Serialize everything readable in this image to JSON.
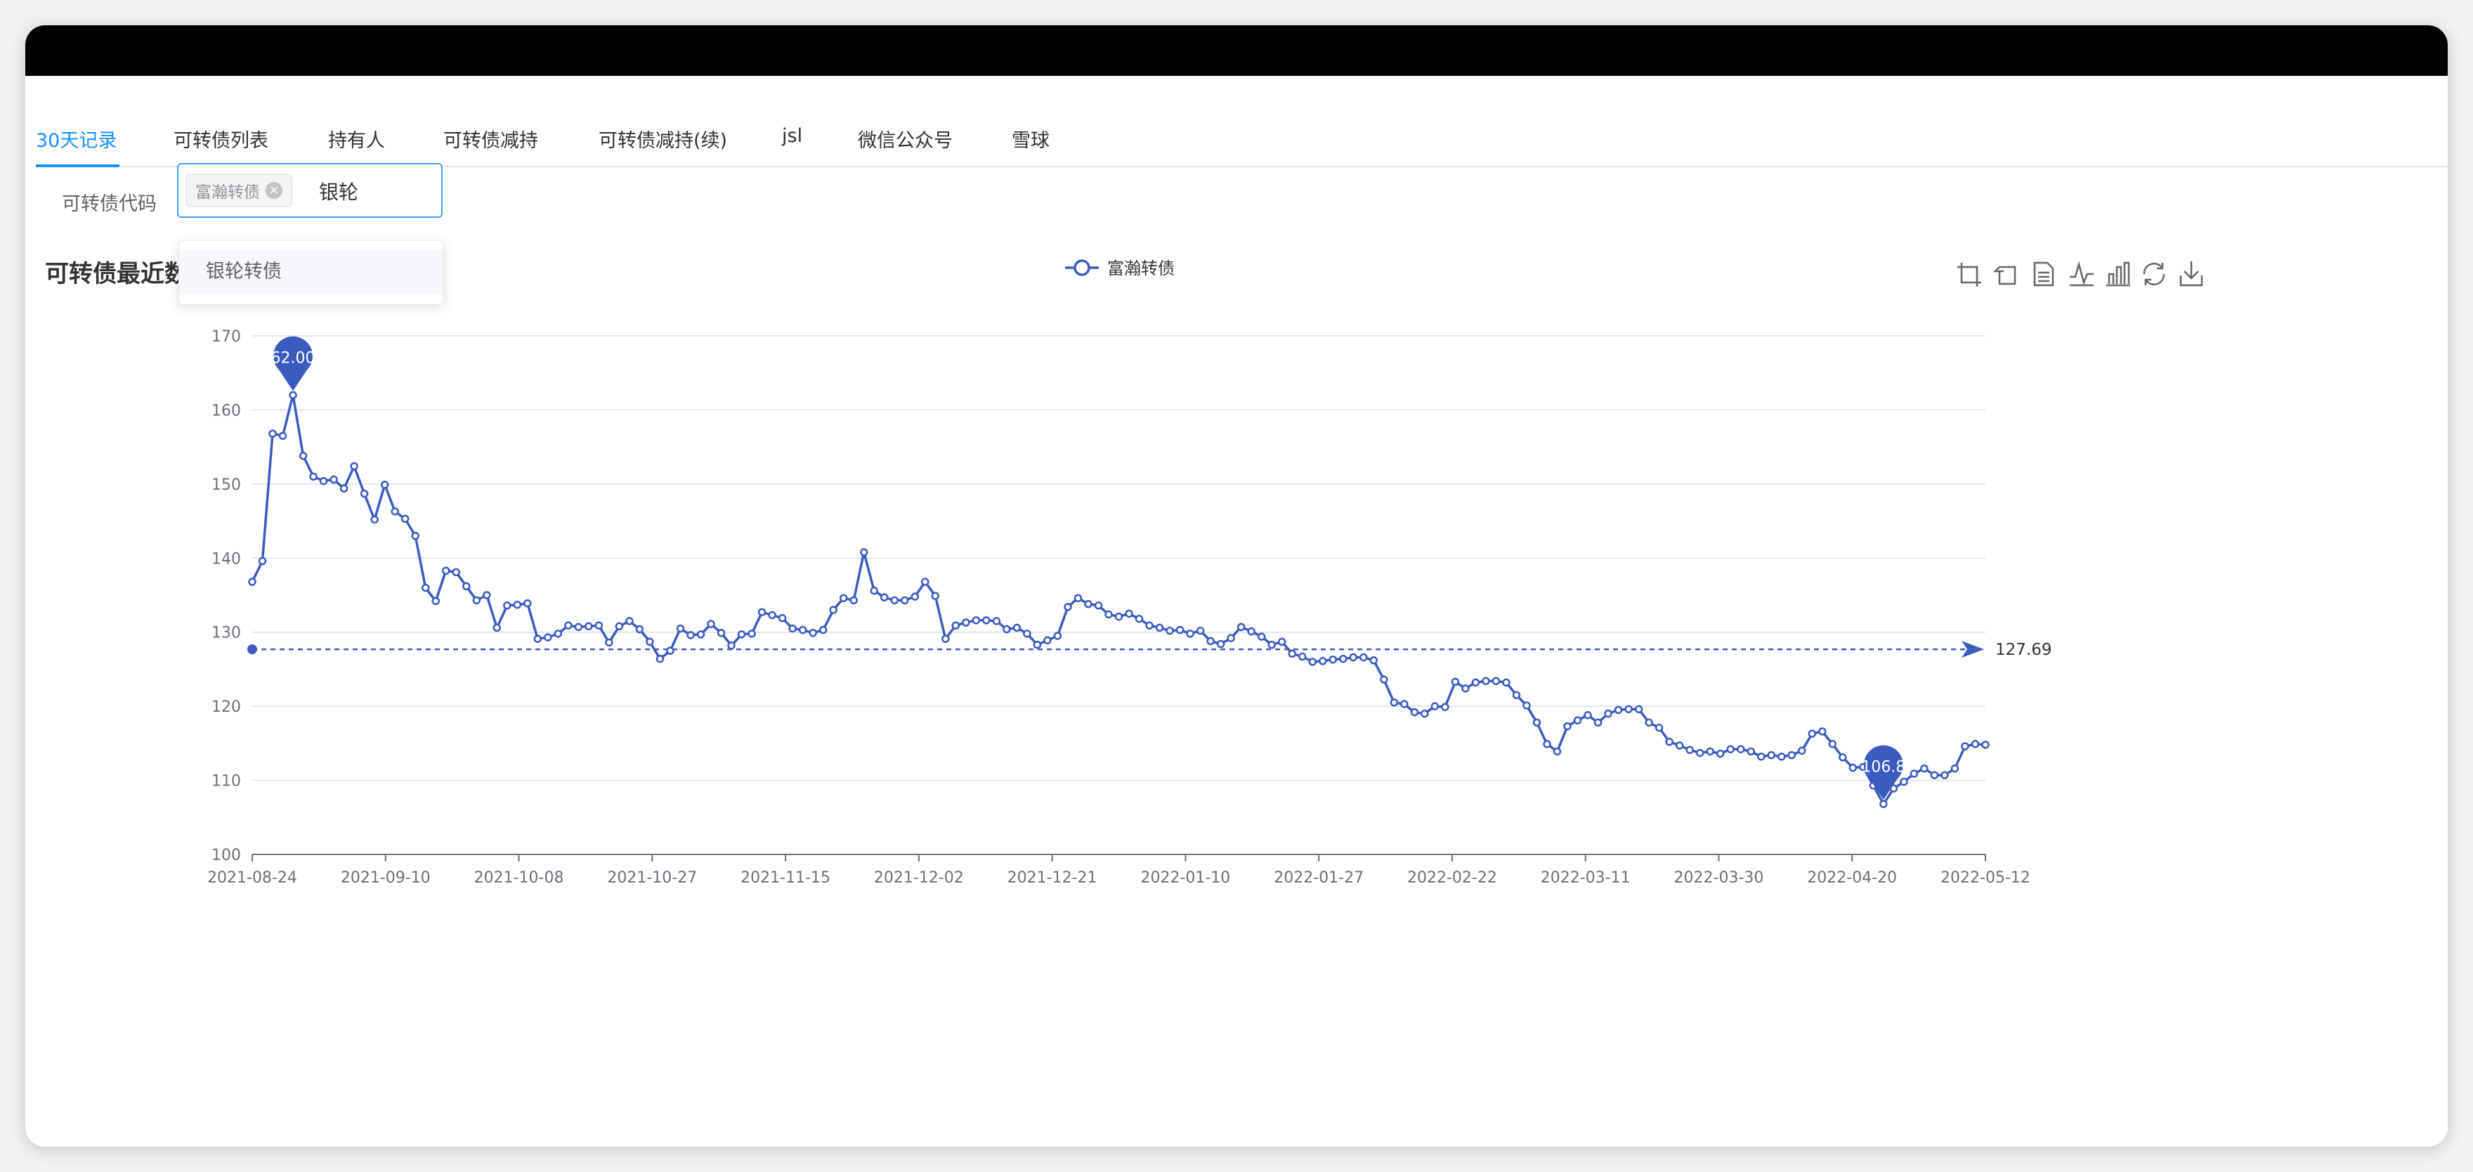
{
  "tabs": [
    {
      "label": "30天记录",
      "active": true
    },
    {
      "label": "可转债列表"
    },
    {
      "label": "持有人"
    },
    {
      "label": "可转债减持"
    },
    {
      "label": "可转债减持(续)"
    },
    {
      "label": "jsl"
    },
    {
      "label": "微信公众号"
    },
    {
      "label": "雪球"
    }
  ],
  "form": {
    "label": "可转债代码",
    "selected_tag": "富瀚转债",
    "tag_close_glyph": "×",
    "input_value": "银轮"
  },
  "dropdown": {
    "options": [
      "银轮转债"
    ]
  },
  "chart_title_visible": "可转债最近数",
  "colors": {
    "accent": "#1890ff",
    "series": "#3b5bbf"
  },
  "toolbox_icons": [
    "zoom-icon",
    "zoom-reset-icon",
    "data-view-icon",
    "line-chart-icon",
    "bar-chart-icon",
    "restore-icon",
    "download-icon"
  ],
  "chart_data": {
    "type": "line",
    "legend": [
      "富瀚转债"
    ],
    "legend_position": "top-center",
    "ylim": [
      100,
      170
    ],
    "yticks": [
      100,
      110,
      120,
      130,
      140,
      150,
      160,
      170
    ],
    "xtick_labels": [
      "2021-08-24",
      "2021-09-10",
      "2021-10-08",
      "2021-10-27",
      "2021-11-15",
      "2021-12-02",
      "2021-12-21",
      "2022-01-10",
      "2022-01-27",
      "2022-02-22",
      "2022-03-11",
      "2022-03-30",
      "2022-04-20",
      "2022-05-12"
    ],
    "grid": true,
    "series": [
      {
        "name": "富瀚转债",
        "values": [
          136.8,
          139.6,
          156.8,
          156.5,
          162.001,
          153.8,
          151.0,
          150.4,
          150.6,
          149.4,
          152.4,
          148.7,
          145.2,
          149.9,
          146.3,
          145.3,
          143.0,
          136.0,
          134.2,
          138.3,
          138.1,
          136.2,
          134.3,
          135.0,
          130.6,
          133.6,
          133.7,
          133.9,
          129.1,
          129.3,
          129.8,
          130.9,
          130.7,
          130.8,
          130.9,
          128.6,
          130.8,
          131.5,
          130.4,
          128.7,
          126.4,
          127.5,
          130.5,
          129.6,
          129.7,
          131.1,
          129.9,
          128.2,
          129.7,
          129.8,
          132.7,
          132.3,
          131.9,
          130.5,
          130.3,
          129.9,
          130.3,
          133.0,
          134.6,
          134.3,
          140.8,
          135.6,
          134.7,
          134.3,
          134.3,
          134.8,
          136.8,
          134.9,
          129.1,
          130.9,
          131.3,
          131.6,
          131.6,
          131.5,
          130.4,
          130.6,
          129.8,
          128.3,
          128.9,
          129.5,
          133.4,
          134.6,
          133.8,
          133.6,
          132.4,
          132.1,
          132.5,
          131.8,
          130.9,
          130.6,
          130.2,
          130.3,
          129.8,
          130.2,
          128.8,
          128.4,
          129.2,
          130.7,
          130.1,
          129.4,
          128.3,
          128.7,
          127.1,
          126.7,
          126.0,
          126.1,
          126.3,
          126.4,
          126.6,
          126.6,
          126.2,
          123.6,
          120.5,
          120.3,
          119.2,
          119.0,
          120.0,
          119.9,
          123.3,
          122.4,
          123.2,
          123.4,
          123.4,
          123.2,
          121.5,
          120.1,
          117.8,
          114.9,
          113.9,
          117.3,
          118.1,
          118.8,
          117.8,
          119.0,
          119.5,
          119.6,
          119.6,
          117.8,
          117.1,
          115.2,
          114.7,
          114.1,
          113.7,
          113.9,
          113.6,
          114.2,
          114.2,
          113.9,
          113.2,
          113.4,
          113.2,
          113.4,
          114.0,
          116.3,
          116.6,
          114.9,
          113.1,
          111.7,
          111.8,
          109.3,
          106.8,
          108.9,
          109.8,
          110.9,
          111.6,
          110.7,
          110.7,
          111.6,
          114.6,
          114.9,
          114.8
        ]
      }
    ],
    "markpoints": [
      {
        "type": "max",
        "label": "162.001"
      },
      {
        "type": "min",
        "label": "106.8"
      }
    ],
    "markline": {
      "type": "average",
      "label": "127.69",
      "value": 127.69
    }
  }
}
